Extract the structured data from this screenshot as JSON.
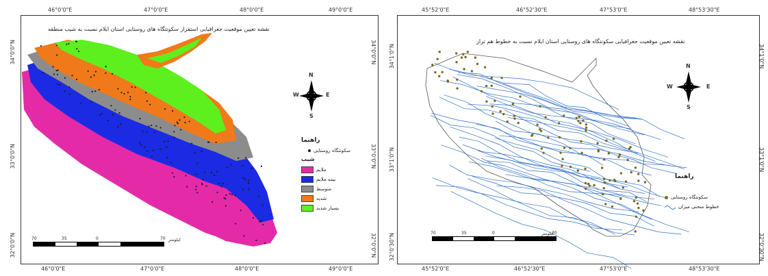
{
  "left_map": {
    "title": "نقشه تعیین موقعیت جغرافیایی استقرار سکونتگاه های روستایی استان ایلام نسبت به شیب منطقه",
    "top_ticks": [
      "46°0'0\"E",
      "47°0'0\"E",
      "48°0'0\"E",
      "49°0'0\"E"
    ],
    "bottom_ticks": [
      "46°0'0\"E",
      "47°0'0\"E",
      "48°0'0\"E",
      "49°0'0\"E"
    ],
    "left_ticks": [
      "34°0'0\"N",
      "33°0'0\"N",
      "32°0'0\"N"
    ],
    "right_ticks": [
      "34°0'0\"N",
      "33°0'0\"N",
      "32°0'0\"N"
    ],
    "legend_title": "راهنما",
    "legend_point": "سکونتگاه روستایی",
    "legend_slope_title": "شیب",
    "legend_items": [
      {
        "label": "ملایم",
        "color": "#e52aa8"
      },
      {
        "label": "نیمه ملایم",
        "color": "#1a2be3"
      },
      {
        "label": "متوسط",
        "color": "#8c8c8c"
      },
      {
        "label": "شدید",
        "color": "#f07a1a"
      },
      {
        "label": "بسیار شدید",
        "color": "#5ef01e"
      }
    ],
    "scale_labels": [
      "70",
      "35",
      "0",
      "70"
    ],
    "scale_unit": "کیلومتر",
    "compass": {
      "n": "N",
      "s": "S",
      "e": "E",
      "w": "W"
    }
  },
  "right_map": {
    "title": "نقشه تعیین موقعیت جغرافیایی سکونتگاه های روستایی استان ایلام نسبت به خطوط هم تراز",
    "top_ticks": [
      "45°52'0\"E",
      "46°52'30\"E",
      "47°53'0\"E",
      "48°53'30\"E"
    ],
    "bottom_ticks": [
      "45°52'0\"E",
      "46°52'30\"E",
      "47°53'0\"E",
      "48°53'30\"E"
    ],
    "left_ticks": [
      "34°1'0\"N",
      "33°1'0\"N",
      "32°0'30\"N"
    ],
    "right_ticks": [
      "34°1'0\"N",
      "33°1'0\"N",
      "32°0'30\"N"
    ],
    "legend_title": "راهنما",
    "legend_point": "سکونتگاه روستایی",
    "legend_line": "خطوط منحنی میزان",
    "scale_labels": [
      "70",
      "35",
      "0",
      "70"
    ],
    "scale_unit": "کیلومتر",
    "compass": {
      "n": "N",
      "s": "S",
      "e": "E",
      "w": "W"
    }
  },
  "colors": {
    "frame": "#333333",
    "village_point_left": "#1b1b1b",
    "village_point_right": "#7a6a1e",
    "contour": "#2f6fc7"
  }
}
